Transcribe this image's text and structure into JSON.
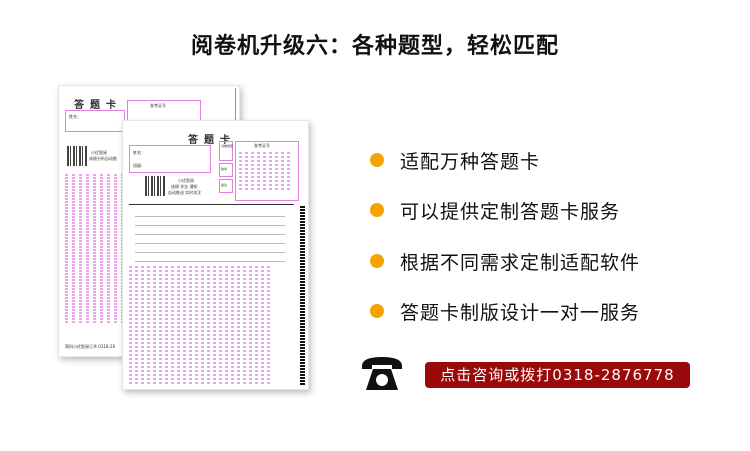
{
  "title": "阅卷机升级六：各种题型，轻松匹配",
  "back_card": {
    "title": "答题卡",
    "name_label": "姓名：",
    "exam_label": "准考证号",
    "brand": "小优智阅",
    "brand_sub": "成绩分析自动推",
    "footer": "简科小优智阅订术 0318-28"
  },
  "front_card": {
    "title": "答题卡",
    "name_label": "姓名：",
    "class_label": "班级：",
    "exam_label": "准考证号",
    "brand": "小优智阅",
    "brand_line1": "成绩 作业 通知",
    "brand_line2": "自动推送 实时关注",
    "side_labels": [
      "试卷类型",
      "缺考",
      "备注"
    ]
  },
  "features": [
    {
      "text": "适配万种答题卡"
    },
    {
      "text": "可以提供定制答题卡服务"
    },
    {
      "text": "根据不同需求定制适配软件"
    },
    {
      "text": "答题卡制版设计一对一服务"
    }
  ],
  "contact": {
    "icon": "telephone-icon",
    "label": "点击咨询或拨打0318-2876778"
  },
  "colors": {
    "bullet": "#f5a300",
    "cta": "#9b0a0a",
    "card_pink": "#e080e0"
  }
}
